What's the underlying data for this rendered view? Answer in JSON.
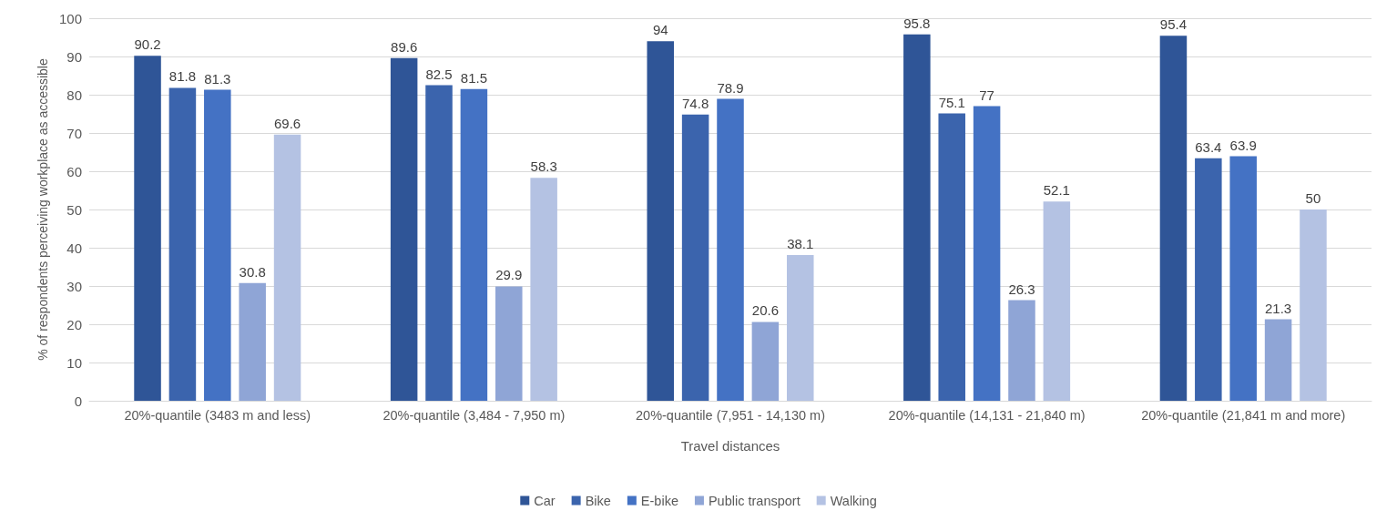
{
  "chart_data": {
    "type": "bar",
    "xlabel": "Travel distances",
    "ylabel": "% of respondents perceiving workplace as accessible",
    "categories": [
      "20%-quantile (3483 m and less)",
      "20%-quantile (3,484 - 7,950 m)",
      "20%-quantile (7,951 - 14,130 m)",
      "20%-quantile (14,131 - 21,840 m)",
      "20%-quantile (21,841 m and more)"
    ],
    "series": [
      {
        "name": "Car",
        "color": "#2f5597",
        "values": [
          90.2,
          89.6,
          94,
          95.8,
          95.4
        ]
      },
      {
        "name": "Bike",
        "color": "#3b64ad",
        "values": [
          81.8,
          82.5,
          74.8,
          75.1,
          63.4
        ]
      },
      {
        "name": "E-bike",
        "color": "#4472c4",
        "values": [
          81.3,
          81.5,
          78.9,
          77,
          63.9
        ]
      },
      {
        "name": "Public transport",
        "color": "#8fa5d6",
        "values": [
          30.8,
          29.9,
          20.6,
          26.3,
          21.3
        ]
      },
      {
        "name": "Walking",
        "color": "#b4c2e3",
        "values": [
          69.6,
          58.3,
          38.1,
          52.1,
          50
        ]
      }
    ],
    "ylim": [
      0,
      100
    ],
    "yticks": [
      0,
      10,
      20,
      30,
      40,
      50,
      60,
      70,
      80,
      90,
      100
    ],
    "grid": "y",
    "legend": "bottom",
    "data_labels": true
  }
}
